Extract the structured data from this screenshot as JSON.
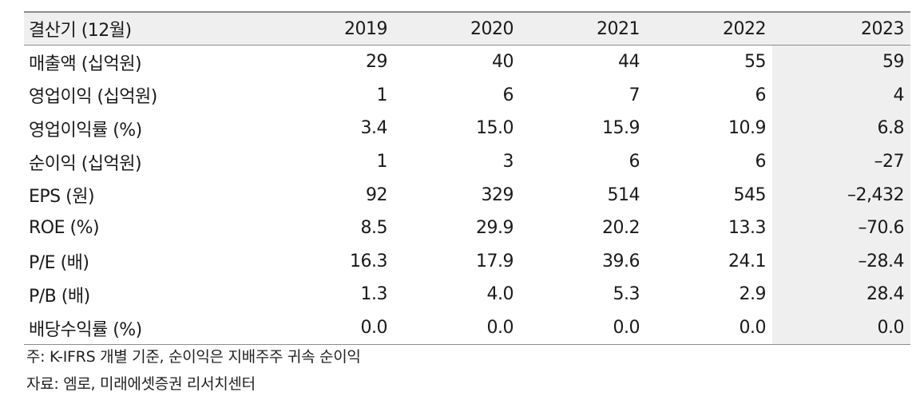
{
  "table": {
    "header": {
      "label": "결산기 (12월)",
      "years": [
        "2019",
        "2020",
        "2021",
        "2022",
        "2023"
      ]
    },
    "rows": [
      {
        "label": "매출액 (십억원)",
        "values": [
          "29",
          "40",
          "44",
          "55",
          "59"
        ]
      },
      {
        "label": "영업이익 (십억원)",
        "values": [
          "1",
          "6",
          "7",
          "6",
          "4"
        ]
      },
      {
        "label": "영업이익률 (%)",
        "values": [
          "3.4",
          "15.0",
          "15.9",
          "10.9",
          "6.8"
        ]
      },
      {
        "label": "순이익 (십억원)",
        "values": [
          "1",
          "3",
          "6",
          "6",
          "–27"
        ]
      },
      {
        "label": "EPS (원)",
        "values": [
          "92",
          "329",
          "514",
          "545",
          "–2,432"
        ]
      },
      {
        "label": "ROE (%)",
        "values": [
          "8.5",
          "29.9",
          "20.2",
          "13.3",
          "–70.6"
        ]
      },
      {
        "label": "P/E (배)",
        "values": [
          "16.3",
          "17.9",
          "39.6",
          "24.1",
          "–28.4"
        ]
      },
      {
        "label": "P/B (배)",
        "values": [
          "1.3",
          "4.0",
          "5.3",
          "2.9",
          "28.4"
        ]
      },
      {
        "label": "배당수익률 (%)",
        "values": [
          "0.0",
          "0.0",
          "0.0",
          "0.0",
          "0.0"
        ]
      }
    ]
  },
  "notes": {
    "note": "주: K-IFRS 개별 기준, 순이익은 지배주주 귀속 순이익",
    "source": "자료: 엠로, 미래에셋증권 리서치센터"
  },
  "colors": {
    "header_bg": "#efefef",
    "rule": "#8c8c8c",
    "text": "#1a1a1a"
  }
}
